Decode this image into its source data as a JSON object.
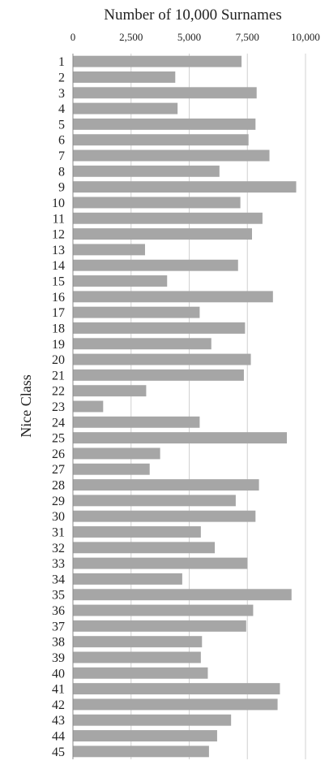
{
  "chart_data": {
    "type": "bar",
    "orientation": "horizontal",
    "title": "Number of 10,000 Surnames",
    "xlabel": "",
    "ylabel": "Nice Class",
    "xlim": [
      0,
      10000
    ],
    "x_ticks": [
      "0",
      "2,500",
      "5,000",
      "7,500",
      "10,000"
    ],
    "x_tick_values": [
      0,
      2500,
      5000,
      7500,
      10000
    ],
    "x_axis_position": "top",
    "grid": true,
    "bar_color": "#a6a6a6",
    "grid_color": "#d0d0d0",
    "categories": [
      "1",
      "2",
      "3",
      "4",
      "5",
      "6",
      "7",
      "8",
      "9",
      "10",
      "11",
      "12",
      "13",
      "14",
      "15",
      "16",
      "17",
      "18",
      "19",
      "20",
      "21",
      "22",
      "23",
      "24",
      "25",
      "26",
      "27",
      "28",
      "29",
      "30",
      "31",
      "32",
      "33",
      "34",
      "35",
      "36",
      "37",
      "38",
      "39",
      "40",
      "41",
      "42",
      "43",
      "44",
      "45"
    ],
    "values": [
      7250,
      4400,
      7900,
      4500,
      7850,
      7550,
      8450,
      6300,
      9600,
      7200,
      8150,
      7700,
      3100,
      7100,
      4050,
      8600,
      5450,
      7400,
      5950,
      7650,
      7350,
      3150,
      1300,
      5450,
      9200,
      3750,
      3300,
      8000,
      7000,
      7850,
      5500,
      6100,
      7500,
      4700,
      9400,
      7750,
      7450,
      5550,
      5500,
      5800,
      8900,
      8800,
      6800,
      6200,
      5850
    ]
  }
}
